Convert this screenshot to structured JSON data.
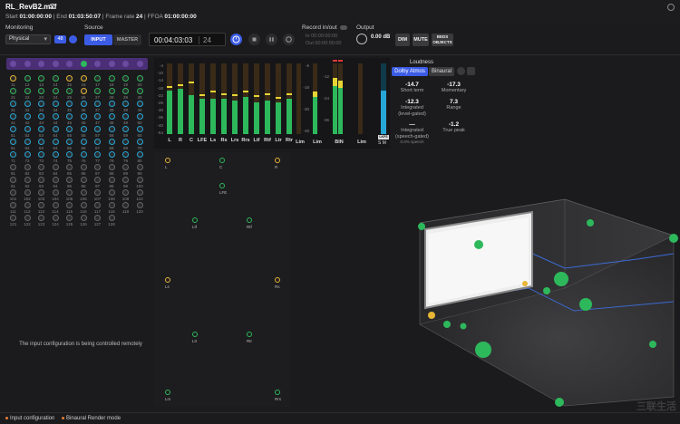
{
  "file": {
    "name": "RL_RevB2.mxf",
    "start_label": "Start",
    "start": "01:00:00:00",
    "end_label": "End",
    "end": "01:03:50:07",
    "framerate_label": "Frame rate",
    "framerate": "24",
    "ffoa_label": "FFOA",
    "ffoa": "01:00:00:00"
  },
  "monitoring": {
    "label": "Monitoring",
    "value": "Physical",
    "badge": "48"
  },
  "source": {
    "label": "Source",
    "input": "INPUT",
    "master": "MASTER"
  },
  "transport": {
    "timecode": "00:04:03:03",
    "frames": "24"
  },
  "record": {
    "label": "Record in/out",
    "in_label": "In",
    "in_tc": "00:00:00:00",
    "out_label": "Out",
    "out_tc": "00:00:00:00"
  },
  "output": {
    "label": "Output",
    "db": "0.00 dB",
    "dim": "DIM",
    "mute": "MUTE",
    "beds_objects_1": "BEDS",
    "beds_objects_2": "OBJECTS"
  },
  "grid": {
    "rows": [
      [
        1,
        2,
        3,
        4,
        5,
        6,
        7,
        8,
        9,
        10
      ],
      [
        11,
        12,
        13,
        14,
        15,
        16,
        17,
        18,
        19,
        20
      ],
      [
        21,
        22,
        23,
        24,
        25,
        26,
        27,
        28,
        29,
        30
      ],
      [
        31,
        32,
        33,
        34,
        35,
        36,
        37,
        38,
        39,
        40
      ],
      [
        41,
        42,
        43,
        44,
        45,
        46,
        47,
        48,
        49,
        50
      ],
      [
        51,
        52,
        53,
        54,
        55,
        56,
        57,
        58,
        59,
        60
      ],
      [
        61,
        62,
        63,
        64,
        65,
        66,
        67,
        68,
        69,
        70
      ],
      [
        71,
        72,
        73,
        74,
        75,
        76,
        77,
        78,
        79,
        80
      ],
      [
        81,
        82,
        83,
        84,
        85,
        86,
        87,
        88,
        89,
        90
      ],
      [
        91,
        92,
        93,
        94,
        95,
        96,
        97,
        98,
        99,
        100
      ],
      [
        101,
        102,
        103,
        104,
        105,
        106,
        107,
        108,
        109,
        110
      ],
      [
        111,
        112,
        113,
        114,
        115,
        116,
        117,
        118,
        119,
        120
      ],
      [
        121,
        122,
        123,
        124,
        125,
        126,
        127,
        128
      ]
    ],
    "remote_message": "The input configuration is being controlled remotely"
  },
  "meters": {
    "scale": [
      "-4",
      "-10",
      "-14",
      "-18",
      "-22",
      "-26",
      "-30",
      "-36",
      "-40",
      "-54"
    ],
    "scale_b": [
      "-6",
      "-12",
      "-18",
      "-24",
      "-30",
      "-36",
      "-48"
    ],
    "channels": [
      {
        "label": "L",
        "level": 0.62,
        "peak": 0.68
      },
      {
        "label": "R",
        "level": 0.64,
        "peak": 0.7
      },
      {
        "label": "C",
        "level": 0.55,
        "peak": 0.74
      },
      {
        "label": "LFE",
        "level": 0.5,
        "peak": 0.56
      },
      {
        "label": "Ls",
        "level": 0.5,
        "peak": 0.62
      },
      {
        "label": "Rs",
        "level": 0.5,
        "peak": 0.58
      },
      {
        "label": "Lrs",
        "level": 0.48,
        "peak": 0.56
      },
      {
        "label": "Rrs",
        "level": 0.52,
        "peak": 0.62
      },
      {
        "label": "Ltf",
        "level": 0.45,
        "peak": 0.55
      },
      {
        "label": "Rtf",
        "level": 0.48,
        "peak": 0.58
      },
      {
        "label": "Ltr",
        "level": 0.45,
        "peak": 0.53
      },
      {
        "label": "Rtr",
        "level": 0.5,
        "peak": 0.58
      }
    ],
    "lim_1": "Lim",
    "lim_2": "Lim",
    "bin": "BIN",
    "lim_3": "Lim",
    "s_label": "S",
    "m_label": "M",
    "lkfs": "LKFS"
  },
  "loudness": {
    "title": "Loudness",
    "tab_atmos": "Dolby Atmos",
    "tab_binaural": "Binaural",
    "short_term": "-14.7",
    "short_term_lbl": "Short term",
    "momentary": "-17.3",
    "momentary_lbl": "Momentary",
    "integrated_lg": "-12.3",
    "integrated_lg_lbl1": "Integrated",
    "integrated_lg_lbl2": "(level-gated)",
    "range": "7.3",
    "range_lbl": "Range",
    "integrated_sg": "—",
    "integrated_sg_lbl1": "Integrated",
    "integrated_sg_lbl2": "(speech-gated)",
    "speech_pct": "0.0% speech",
    "true_peak": "-1.2",
    "true_peak_lbl": "True peak"
  },
  "speakers": [
    {
      "label": "L",
      "color": "#e8b634"
    },
    {
      "label": "C",
      "color": "#2eb85c"
    },
    {
      "label": "R",
      "color": "#e8b634"
    },
    {
      "label": "LFE",
      "color": "#2eb85c"
    },
    {
      "label": "Ltf",
      "color": "#2eb85c"
    },
    {
      "label": "Rtf",
      "color": "#2eb85c"
    },
    {
      "label": "Ls",
      "color": "#e8b634"
    },
    {
      "label": "Rs",
      "color": "#e8b634"
    },
    {
      "label": "Ltr",
      "color": "#2eb85c"
    },
    {
      "label": "Rtr",
      "color": "#2eb85c"
    },
    {
      "label": "Lrs",
      "color": "#2eb85c"
    },
    {
      "label": "Rrs",
      "color": "#2eb85c"
    }
  ],
  "footer": {
    "input_config": "Input configuration",
    "binaural_mode": "Binaural Render mode"
  },
  "watermark": "三联生活"
}
